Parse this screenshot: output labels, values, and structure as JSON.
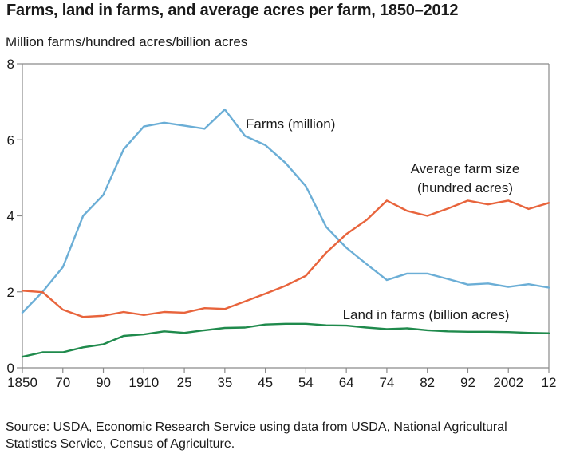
{
  "chart_data": {
    "type": "line",
    "title": "Farms, land in farms, and average acres per farm, 1850–2012",
    "ylabel": "Million farms/hundred acres/billion acres",
    "xlabel": "",
    "ylim": [
      0,
      8
    ],
    "yticks": [
      "0",
      "2",
      "4",
      "6",
      "8"
    ],
    "ytick_values": [
      0,
      2,
      4,
      6,
      8
    ],
    "x": [
      1850,
      1860,
      1870,
      1880,
      1890,
      1900,
      1910,
      1920,
      1925,
      1930,
      1935,
      1940,
      1945,
      1950,
      1954,
      1959,
      1964,
      1969,
      1974,
      1978,
      1982,
      1987,
      1992,
      1997,
      2002,
      2007,
      2012
    ],
    "xtick_labels": [
      "1850",
      "70",
      "90",
      "1910",
      "25",
      "35",
      "45",
      "54",
      "64",
      "74",
      "82",
      "92",
      "2002",
      "12"
    ],
    "xtick_years": [
      1850,
      1870,
      1890,
      1910,
      1925,
      1935,
      1945,
      1954,
      1964,
      1974,
      1982,
      1992,
      2002,
      2012
    ],
    "grid": false,
    "series": [
      {
        "name": "Farms (million)",
        "label_lines": [
          "Farms (million)"
        ],
        "color": "#6baed6",
        "values": [
          1.45,
          2.0,
          2.65,
          4.0,
          4.55,
          5.75,
          6.35,
          6.45,
          6.37,
          6.29,
          6.8,
          6.1,
          5.86,
          5.39,
          4.78,
          3.71,
          3.16,
          2.73,
          2.31,
          2.48,
          2.48,
          2.34,
          2.19,
          2.22,
          2.13,
          2.2,
          2.11
        ]
      },
      {
        "name": "Average farm size (hundred acres)",
        "label_lines": [
          "Average farm size",
          "(hundred acres)"
        ],
        "color": "#e8643c",
        "values": [
          2.03,
          1.99,
          1.53,
          1.34,
          1.37,
          1.47,
          1.39,
          1.47,
          1.45,
          1.57,
          1.55,
          1.75,
          1.95,
          2.16,
          2.42,
          3.03,
          3.52,
          3.89,
          4.4,
          4.13,
          4.0,
          4.19,
          4.4,
          4.3,
          4.4,
          4.18,
          4.34
        ]
      },
      {
        "name": "Land in farms (billion acres)",
        "label_lines": [
          "Land in farms (billion acres)"
        ],
        "color": "#1f8a4c",
        "values": [
          0.29,
          0.41,
          0.41,
          0.54,
          0.62,
          0.84,
          0.88,
          0.96,
          0.92,
          0.99,
          1.05,
          1.06,
          1.14,
          1.16,
          1.16,
          1.12,
          1.11,
          1.06,
          1.02,
          1.04,
          0.99,
          0.96,
          0.95,
          0.95,
          0.94,
          0.92,
          0.91
        ]
      }
    ],
    "source": "Source: USDA, Economic Research Service using data from USDA, National Agricultural Statistics Service, Census of Agriculture."
  }
}
